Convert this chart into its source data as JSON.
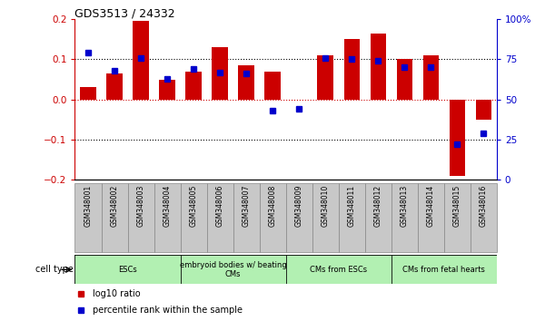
{
  "title": "GDS3513 / 24332",
  "samples": [
    "GSM348001",
    "GSM348002",
    "GSM348003",
    "GSM348004",
    "GSM348005",
    "GSM348006",
    "GSM348007",
    "GSM348008",
    "GSM348009",
    "GSM348010",
    "GSM348011",
    "GSM348012",
    "GSM348013",
    "GSM348014",
    "GSM348015",
    "GSM348016"
  ],
  "log10_ratio": [
    0.03,
    0.065,
    0.195,
    0.05,
    0.07,
    0.13,
    0.085,
    0.07,
    0.0,
    0.11,
    0.15,
    0.165,
    0.1,
    0.11,
    -0.19,
    -0.05
  ],
  "percentile_rank": [
    79,
    68,
    76,
    63,
    69,
    67,
    66,
    43,
    44,
    76,
    75,
    74,
    70,
    70,
    22,
    29
  ],
  "ylim": [
    -0.2,
    0.2
  ],
  "y2lim": [
    0,
    100
  ],
  "yticks": [
    -0.2,
    -0.1,
    0.0,
    0.1,
    0.2
  ],
  "y2ticks": [
    0,
    25,
    50,
    75,
    100
  ],
  "cell_types": [
    {
      "label": "ESCs",
      "start": 0,
      "end": 3,
      "color": "#b2f0b2"
    },
    {
      "label": "embryoid bodies w/ beating\nCMs",
      "start": 4,
      "end": 7,
      "color": "#b2f0b2"
    },
    {
      "label": "CMs from ESCs",
      "start": 8,
      "end": 11,
      "color": "#b2f0b2"
    },
    {
      "label": "CMs from fetal hearts",
      "start": 12,
      "end": 15,
      "color": "#b2f0b2"
    }
  ],
  "bar_color": "#CC0000",
  "dot_color": "#0000CC",
  "red_color": "#CC0000",
  "blue_color": "#0000CC",
  "legend_items": [
    {
      "label": "log10 ratio",
      "color": "#CC0000"
    },
    {
      "label": "percentile rank within the sample",
      "color": "#0000CC"
    }
  ],
  "bar_width": 0.6,
  "dot_size": 4
}
